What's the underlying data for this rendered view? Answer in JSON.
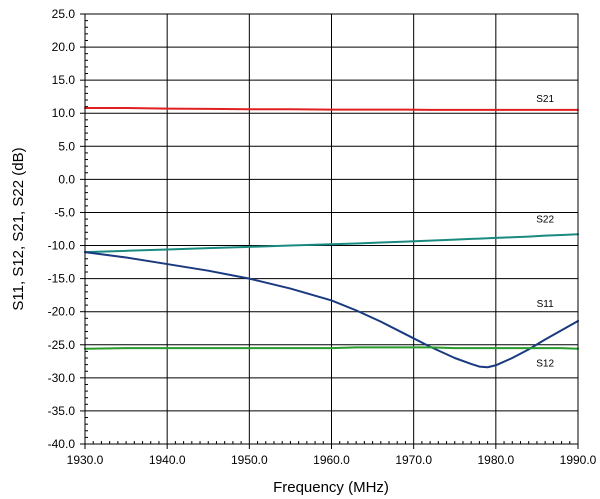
{
  "chart_data": {
    "type": "line",
    "title": "",
    "xlabel": "Frequency (MHz)",
    "ylabel": "S11, S12, S21, S22 (dB)",
    "xlim": [
      1930,
      1990
    ],
    "ylim": [
      -40,
      25
    ],
    "grid": true,
    "x_ticks": [
      "1930.0",
      "1940.0",
      "1950.0",
      "1960.0",
      "1970.0",
      "1980.0",
      "1990.0"
    ],
    "y_ticks": [
      "25.0",
      "20.0",
      "15.0",
      "10.0",
      "5.0",
      "0.0",
      "-5.0",
      "-10.0",
      "-15.0",
      "-20.0",
      "-25.0",
      "-30.0",
      "-35.0",
      "-40.0"
    ],
    "x": [
      1930,
      1935,
      1940,
      1945,
      1950,
      1955,
      1960,
      1963,
      1966,
      1969,
      1972,
      1975,
      1977,
      1978,
      1979,
      1980,
      1982,
      1984,
      1986,
      1988,
      1990
    ],
    "series": [
      {
        "name": "S21",
        "color": "#e02020",
        "values": [
          10.8,
          10.8,
          10.7,
          10.65,
          10.6,
          10.6,
          10.55,
          10.55,
          10.55,
          10.55,
          10.5,
          10.5,
          10.5,
          10.5,
          10.5,
          10.5,
          10.5,
          10.5,
          10.5,
          10.5,
          10.5
        ]
      },
      {
        "name": "S22",
        "color": "#1a8a80",
        "values": [
          -11.0,
          -10.8,
          -10.6,
          -10.4,
          -10.2,
          -10.0,
          -9.8,
          -9.7,
          -9.55,
          -9.4,
          -9.25,
          -9.1,
          -9.0,
          -8.95,
          -8.9,
          -8.85,
          -8.75,
          -8.65,
          -8.5,
          -8.4,
          -8.3
        ]
      },
      {
        "name": "S11",
        "color": "#1a3a80",
        "values": [
          -11.0,
          -11.8,
          -12.8,
          -13.8,
          -15.0,
          -16.5,
          -18.3,
          -19.8,
          -21.5,
          -23.4,
          -25.3,
          -27.0,
          -27.9,
          -28.3,
          -28.4,
          -28.1,
          -27.0,
          -25.7,
          -24.2,
          -22.8,
          -21.4
        ]
      },
      {
        "name": "S12",
        "color": "#2a9a2a",
        "values": [
          -25.6,
          -25.5,
          -25.5,
          -25.5,
          -25.5,
          -25.5,
          -25.5,
          -25.4,
          -25.4,
          -25.4,
          -25.4,
          -25.5,
          -25.5,
          -25.5,
          -25.5,
          -25.5,
          -25.5,
          -25.5,
          -25.5,
          -25.5,
          -25.6
        ]
      }
    ]
  }
}
